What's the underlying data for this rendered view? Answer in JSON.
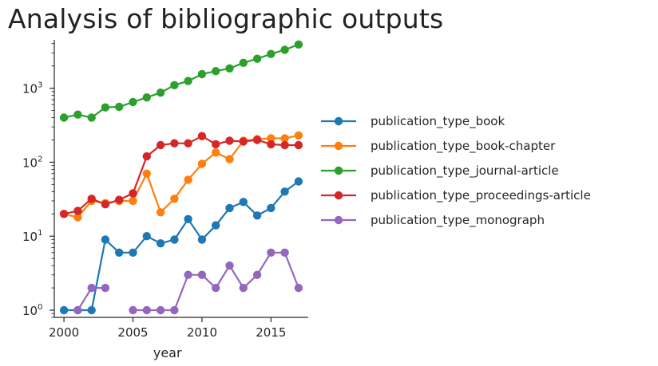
{
  "page": {
    "title": "Analysis of bibliographic outputs"
  },
  "chart_data": {
    "type": "line",
    "title": "Analysis of bibliographic outputs",
    "xlabel": "year",
    "ylabel": "",
    "yscale": "log",
    "xlim": [
      1999.3,
      2017.7
    ],
    "ylim": [
      0.8,
      4500
    ],
    "x_ticks": [
      2000,
      2005,
      2010,
      2015
    ],
    "y_ticks": [
      {
        "value": 1,
        "base": "10",
        "exp": "0"
      },
      {
        "value": 10,
        "base": "10",
        "exp": "1"
      },
      {
        "value": 100,
        "base": "10",
        "exp": "2"
      },
      {
        "value": 1000,
        "base": "10",
        "exp": "3"
      }
    ],
    "grid": false,
    "legend_position": "right",
    "x": [
      2000,
      2001,
      2002,
      2003,
      2004,
      2005,
      2006,
      2007,
      2008,
      2009,
      2010,
      2011,
      2012,
      2013,
      2014,
      2015,
      2016,
      2017
    ],
    "series": [
      {
        "name": "publication_type_book",
        "color": "#1f77b4",
        "values": [
          1,
          1,
          1,
          9,
          6,
          6,
          10,
          8,
          9,
          17,
          9,
          14,
          24,
          29,
          19,
          24,
          40,
          55
        ]
      },
      {
        "name": "publication_type_book-chapter",
        "color": "#ff7f0e",
        "values": [
          20,
          18,
          30,
          28,
          30,
          30,
          70,
          21,
          32,
          58,
          95,
          135,
          110,
          195,
          205,
          210,
          210,
          230
        ]
      },
      {
        "name": "publication_type_journal-article",
        "color": "#2ca02c",
        "values": [
          400,
          440,
          400,
          550,
          560,
          650,
          750,
          870,
          1100,
          1250,
          1550,
          1700,
          1850,
          2200,
          2500,
          2900,
          3300,
          3900
        ]
      },
      {
        "name": "publication_type_proceedings-article",
        "color": "#d62728",
        "values": [
          20,
          22,
          32,
          27,
          31,
          38,
          120,
          170,
          180,
          180,
          225,
          175,
          195,
          190,
          200,
          175,
          170,
          170
        ]
      },
      {
        "name": "publication_type_monograph",
        "color": "#9467bd",
        "values": [
          null,
          1,
          2,
          2,
          null,
          1,
          1,
          1,
          1,
          3,
          3,
          2,
          4,
          2,
          3,
          6,
          6,
          2
        ]
      }
    ]
  }
}
